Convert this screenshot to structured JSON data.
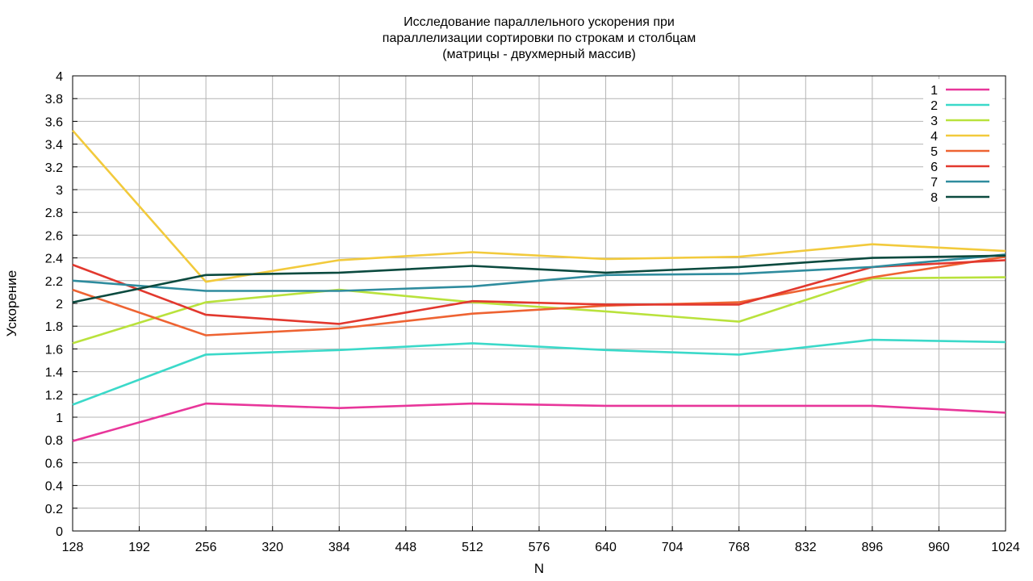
{
  "chart_data": {
    "type": "line",
    "title": [
      "Исследование параллельного ускорения при",
      "параллелизации сортировки по строкам и столбцам",
      "(матрицы - двухмерный массив)"
    ],
    "xlabel": "N",
    "ylabel": "Ускорение",
    "xlim": [
      128,
      1024
    ],
    "ylim": [
      0,
      4
    ],
    "xticks": [
      128,
      192,
      256,
      320,
      384,
      448,
      512,
      576,
      640,
      704,
      768,
      832,
      896,
      960,
      1024
    ],
    "yticks": [
      "0",
      "0.2",
      "0.4",
      "0.6",
      "0.8",
      "1",
      "1.2",
      "1.4",
      "1.6",
      "1.8",
      "2",
      "2.2",
      "2.4",
      "2.6",
      "2.8",
      "3",
      "3.2",
      "3.4",
      "3.6",
      "3.8",
      "4"
    ],
    "grid": true,
    "legend_position": "top-right",
    "x": [
      128,
      256,
      384,
      512,
      640,
      768,
      896,
      1024
    ],
    "series": [
      {
        "name": "1",
        "color": "#e8369a",
        "values": [
          0.79,
          1.12,
          1.08,
          1.12,
          1.1,
          1.1,
          1.1,
          1.04
        ]
      },
      {
        "name": "2",
        "color": "#3bd9c9",
        "values": [
          1.11,
          1.55,
          1.59,
          1.65,
          1.59,
          1.55,
          1.68,
          1.66
        ]
      },
      {
        "name": "3",
        "color": "#b9e23c",
        "values": [
          1.65,
          2.01,
          2.12,
          2.01,
          1.93,
          1.84,
          2.22,
          2.23
        ]
      },
      {
        "name": "4",
        "color": "#f2ca3c",
        "values": [
          3.52,
          2.19,
          2.38,
          2.45,
          2.39,
          2.41,
          2.52,
          2.46
        ]
      },
      {
        "name": "5",
        "color": "#ee6332",
        "values": [
          2.12,
          1.72,
          1.78,
          1.91,
          1.98,
          2.01,
          2.23,
          2.41
        ]
      },
      {
        "name": "6",
        "color": "#e2382e",
        "values": [
          2.34,
          1.9,
          1.82,
          2.02,
          1.99,
          1.99,
          2.32,
          2.38
        ]
      },
      {
        "name": "7",
        "color": "#2f8c9e",
        "values": [
          2.2,
          2.11,
          2.11,
          2.15,
          2.25,
          2.26,
          2.32,
          2.43
        ]
      },
      {
        "name": "8",
        "color": "#0b4a3f",
        "values": [
          2.01,
          2.25,
          2.27,
          2.33,
          2.27,
          2.32,
          2.4,
          2.42
        ]
      }
    ]
  }
}
